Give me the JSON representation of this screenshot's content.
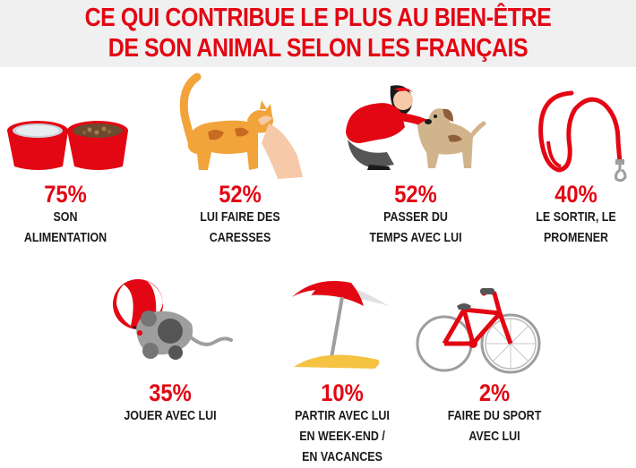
{
  "title": {
    "line1": "CE QUI CONTRIBUE LE PLUS AU BIEN-ÊTRE",
    "line2": "DE SON ANIMAL SELON LES FRANÇAIS"
  },
  "colors": {
    "accent": "#e30613",
    "text": "#1a1a1a",
    "header_bg": "#f0f0f0"
  },
  "items": [
    {
      "icon": "food-bowls-icon",
      "percent": "75%",
      "label_lines": [
        "SON",
        "ALIMENTATION"
      ]
    },
    {
      "icon": "cat-petting-icon",
      "percent": "52%",
      "label_lines": [
        "LUI FAIRE DES",
        "CARESSES"
      ]
    },
    {
      "icon": "woman-dog-icon",
      "percent": "52%",
      "label_lines": [
        "PASSER DU",
        "TEMPS AVEC LUI"
      ]
    },
    {
      "icon": "leash-icon",
      "percent": "40%",
      "label_lines": [
        "LE SORTIR, LE",
        "PROMENER"
      ]
    },
    {
      "icon": "toy-mouse-ball-icon",
      "percent": "35%",
      "label_lines": [
        "JOUER AVEC LUI"
      ]
    },
    {
      "icon": "beach-umbrella-icon",
      "percent": "10%",
      "label_lines": [
        "PARTIR AVEC LUI",
        "EN WEEK-END /",
        "EN VACANCES"
      ]
    },
    {
      "icon": "bicycle-icon",
      "percent": "2%",
      "label_lines": [
        "FAIRE DU SPORT",
        "AVEC LUI"
      ]
    }
  ]
}
